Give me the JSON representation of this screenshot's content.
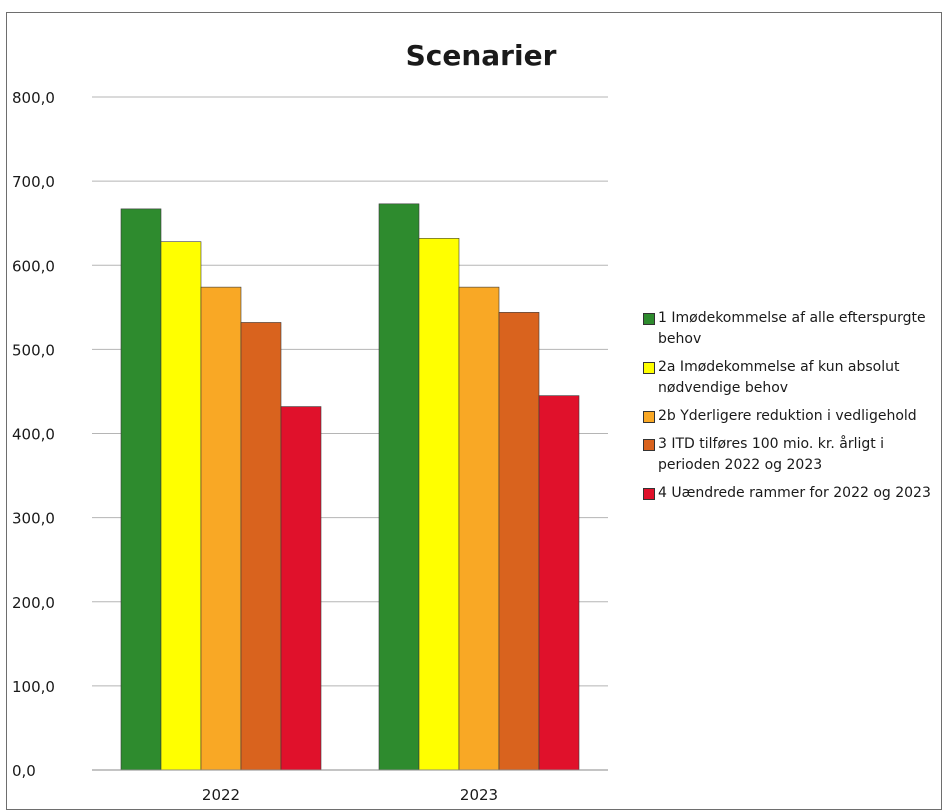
{
  "chart_data": {
    "type": "bar",
    "title": "Scenarier",
    "xlabel": "",
    "ylabel": "",
    "categories": [
      "2022",
      "2023"
    ],
    "ylim": [
      0,
      800
    ],
    "yticks": [
      "0,0",
      "100,0",
      "200,0",
      "300,0",
      "400,0",
      "500,0",
      "600,0",
      "700,0",
      "800,0"
    ],
    "grid": true,
    "legend_position": "right",
    "series": [
      {
        "name": "1 Imødekommelse af alle efterspurgte behov",
        "color": "#2e8b2e",
        "values": [
          667,
          673
        ]
      },
      {
        "name": "2a Imødekommelse af kun absolut nødvendige behov",
        "color": "#ffff00",
        "values": [
          628,
          632
        ]
      },
      {
        "name": "2b Yderligere reduktion i vedligehold",
        "color": "#f9a825",
        "values": [
          574,
          574
        ]
      },
      {
        "name": "3 ITD tilføres 100 mio. kr. årligt i perioden 2022 og 2023",
        "color": "#d9631e",
        "values": [
          532,
          544
        ]
      },
      {
        "name": "4 Uændrede rammer for 2022 og 2023",
        "color": "#e0112b",
        "values": [
          432,
          445
        ]
      }
    ]
  }
}
